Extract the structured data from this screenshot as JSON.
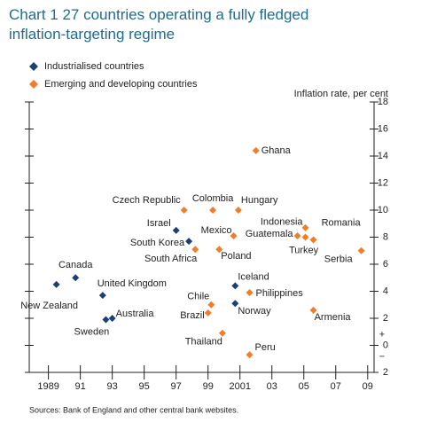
{
  "chart_data": {
    "type": "scatter",
    "title": "Chart 1  27 countries operating a fully fledged",
    "title_line2": "inflation-targeting regime",
    "y_label": "Inflation rate, per cent",
    "source": "Sources: Bank of England and other central bank websites.",
    "axis_signs": [
      "+",
      "−"
    ],
    "xlim": [
      1987.8,
      2009.4
    ],
    "xticks": [
      {
        "value": 1989,
        "label": "1989"
      },
      {
        "value": 1991,
        "label": "91"
      },
      {
        "value": 1993,
        "label": "93"
      },
      {
        "value": 1995,
        "label": "95"
      },
      {
        "value": 1997,
        "label": "97"
      },
      {
        "value": 1999,
        "label": "99"
      },
      {
        "value": 2001,
        "label": "2001"
      },
      {
        "value": 2003,
        "label": "03"
      },
      {
        "value": 2005,
        "label": "05"
      },
      {
        "value": 2007,
        "label": "07"
      },
      {
        "value": 2009,
        "label": "09"
      }
    ],
    "ylim": [
      -2,
      18
    ],
    "yticks": [
      {
        "value": -2,
        "label": "2"
      },
      0,
      2,
      4,
      6,
      8,
      10,
      12,
      14,
      16,
      18
    ],
    "series": [
      {
        "name": "Industrialised countries",
        "color": "#1c3f78",
        "labels": [
          "New Zealand",
          "Canada",
          "United Kingdom",
          "Sweden",
          "Australia",
          "Israel",
          "South Korea",
          "Iceland",
          "Norway"
        ],
        "x": [
          1989.5,
          1990.7,
          1992.4,
          1992.6,
          1993.0,
          1997.0,
          1997.8,
          2000.7,
          2000.7
        ],
        "values": [
          4.5,
          5.0,
          3.7,
          1.9,
          2.0,
          8.5,
          7.7,
          4.4,
          3.1
        ]
      },
      {
        "name": "Emerging and developing countries",
        "color": "#f07d2a",
        "labels": [
          "Czech Republic",
          "Colombia",
          "Hungary",
          "Ghana",
          "South Africa",
          "Mexico",
          "Poland",
          "Chile",
          "Brazil",
          "Thailand",
          "Philippines",
          "Peru",
          "Indonesia",
          "Guatemala",
          "Romania",
          "Turkey",
          "Armenia",
          "Serbia"
        ],
        "x": [
          1997.5,
          1999.3,
          2000.9,
          2002.0,
          1998.2,
          2000.6,
          1999.7,
          1999.2,
          1999.0,
          1999.9,
          2001.6,
          2001.6,
          2005.1,
          2004.6,
          2005.6,
          2005.1,
          2005.6,
          2008.6
        ],
        "values": [
          10.0,
          10.0,
          10.0,
          14.4,
          7.1,
          8.1,
          7.1,
          3.0,
          2.4,
          0.9,
          3.9,
          -0.7,
          8.7,
          8.1,
          7.8,
          8.0,
          2.6,
          7.0
        ]
      }
    ]
  }
}
